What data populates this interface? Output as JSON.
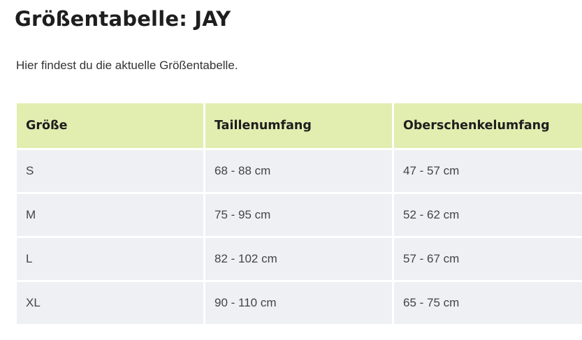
{
  "page": {
    "title": "Größentabelle: JAY",
    "intro": "Hier findest du die aktuelle Größentabelle."
  },
  "table": {
    "headers": [
      "Größe",
      "Taillenumfang",
      "Oberschenkelumfang"
    ],
    "rows": [
      [
        "S",
        "68 - 88 cm",
        "47 - 57 cm"
      ],
      [
        "M",
        "75 - 95 cm",
        "52 - 62 cm"
      ],
      [
        "L",
        "82 - 102 cm",
        "57 - 67 cm"
      ],
      [
        "XL",
        "90 - 110 cm",
        "65 - 75 cm"
      ]
    ]
  },
  "colors": {
    "header_background": "#e2edb0",
    "row_background": "#eff0f3",
    "text": "#222222"
  }
}
